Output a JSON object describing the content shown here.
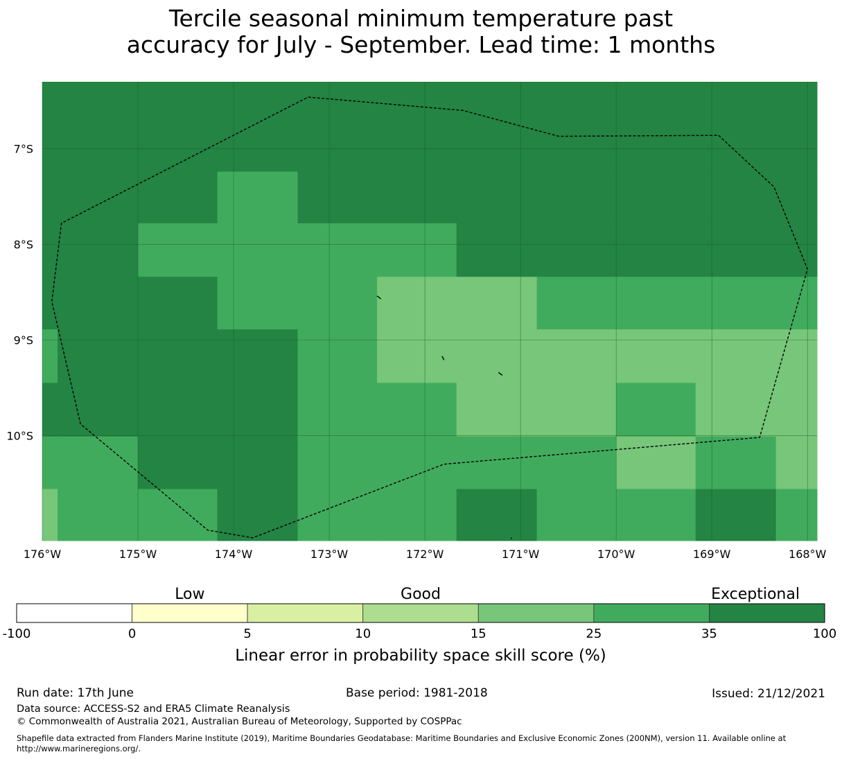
{
  "title": {
    "line1": "Tercile seasonal minimum temperature past",
    "line2": "accuracy for July - September. Lead time: 1 months"
  },
  "map": {
    "lon_range": [
      -176,
      -167.9
    ],
    "lat_range": [
      -6.3,
      -11.1
    ],
    "lon_ticks": [
      {
        "value": -176,
        "label": "176°W"
      },
      {
        "value": -175,
        "label": "175°W"
      },
      {
        "value": -174,
        "label": "174°W"
      },
      {
        "value": -173,
        "label": "173°W"
      },
      {
        "value": -172,
        "label": "172°W"
      },
      {
        "value": -171,
        "label": "171°W"
      },
      {
        "value": -170,
        "label": "170°W"
      },
      {
        "value": -169,
        "label": "169°W"
      },
      {
        "value": -168,
        "label": "168°W"
      }
    ],
    "lat_ticks": [
      {
        "value": -7,
        "label": "7°S"
      },
      {
        "value": -8,
        "label": "8°S"
      },
      {
        "value": -9,
        "label": "9°S"
      },
      {
        "value": -10,
        "label": "10°S"
      }
    ],
    "grid_col_edges_lon": [
      -176,
      -175.84,
      -175,
      -174.17,
      -173.33,
      -172.5,
      -171.67,
      -170.83,
      -170,
      -169.17,
      -168.33,
      -167.9
    ],
    "grid_row_edges_lat": [
      -6.3,
      -7.24,
      -7.78,
      -8.34,
      -8.89,
      -9.45,
      -10.01,
      -10.56,
      -11.1
    ],
    "grid_classes": [
      [
        6,
        6,
        6,
        6,
        6,
        6,
        6,
        6,
        6,
        6,
        6
      ],
      [
        6,
        6,
        6,
        5,
        6,
        6,
        6,
        6,
        6,
        6,
        6
      ],
      [
        6,
        6,
        5,
        5,
        5,
        5,
        6,
        6,
        6,
        6,
        6
      ],
      [
        6,
        6,
        6,
        5,
        5,
        4,
        4,
        5,
        5,
        5,
        5
      ],
      [
        5,
        6,
        6,
        6,
        5,
        4,
        4,
        4,
        4,
        4,
        4
      ],
      [
        6,
        6,
        6,
        6,
        5,
        5,
        4,
        4,
        5,
        4,
        4
      ],
      [
        5,
        5,
        6,
        6,
        5,
        5,
        5,
        5,
        4,
        5,
        4
      ],
      [
        4,
        5,
        5,
        6,
        5,
        5,
        6,
        5,
        5,
        6,
        5
      ]
    ],
    "eez_boundary": [
      [
        -173.22,
        -6.46
      ],
      [
        -171.6,
        -6.6
      ],
      [
        -170.6,
        -6.87
      ],
      [
        -168.93,
        -6.86
      ],
      [
        -168.35,
        -7.4
      ],
      [
        -168.0,
        -8.26
      ],
      [
        -168.5,
        -10.02
      ],
      [
        -171.8,
        -10.3
      ],
      [
        -173.8,
        -11.07
      ],
      [
        -174.27,
        -10.99
      ],
      [
        -175.6,
        -9.88
      ],
      [
        -175.9,
        -8.6
      ],
      [
        -175.8,
        -7.78
      ],
      [
        -173.22,
        -6.46
      ]
    ],
    "islands": [
      [
        [
          -172.5,
          -8.54
        ],
        [
          -172.46,
          -8.57
        ]
      ],
      [
        [
          -171.82,
          -9.17
        ],
        [
          -171.8,
          -9.21
        ]
      ],
      [
        [
          -171.23,
          -9.34
        ],
        [
          -171.19,
          -9.37
        ]
      ],
      [
        [
          -171.1,
          -11.07
        ],
        [
          -171.09,
          -11.08
        ]
      ]
    ]
  },
  "colorbar": {
    "category_labels": {
      "low": "Low",
      "good": "Good",
      "exceptional": "Exceptional"
    },
    "bins": [
      {
        "from": -100,
        "to": 0,
        "color": "#ffffff"
      },
      {
        "from": 0,
        "to": 5,
        "color": "#ffffcc"
      },
      {
        "from": 5,
        "to": 10,
        "color": "#d9f0a3"
      },
      {
        "from": 10,
        "to": 15,
        "color": "#addd8e"
      },
      {
        "from": 15,
        "to": 25,
        "color": "#78c679"
      },
      {
        "from": 25,
        "to": 35,
        "color": "#41ab5d"
      },
      {
        "from": 35,
        "to": 100,
        "color": "#238443"
      }
    ],
    "ticks": [
      "-100",
      "0",
      "5",
      "10",
      "15",
      "25",
      "35",
      "100"
    ],
    "label": "Linear error in probability space skill score (%)"
  },
  "footer": {
    "run_date": "Run date: 17th June",
    "base_period": "Base period: 1981-2018",
    "issued": "Issued: 21/12/2021",
    "data_source": "Data source: ACCESS-S2 and ERA5 Climate Reanalysis",
    "copyright": "© Commonwealth of Australia 2021, Australian Bureau of Meteorology, Supported by COSPPac",
    "shapefile_line1": "Shapefile data extracted from Flanders Marine Institute (2019), Maritime Boundaries Geodatabase: Maritime Boundaries and Exclusive Economic Zones (200NM), version 11. Available online at",
    "shapefile_line2": "http://www.marineregions.org/."
  }
}
